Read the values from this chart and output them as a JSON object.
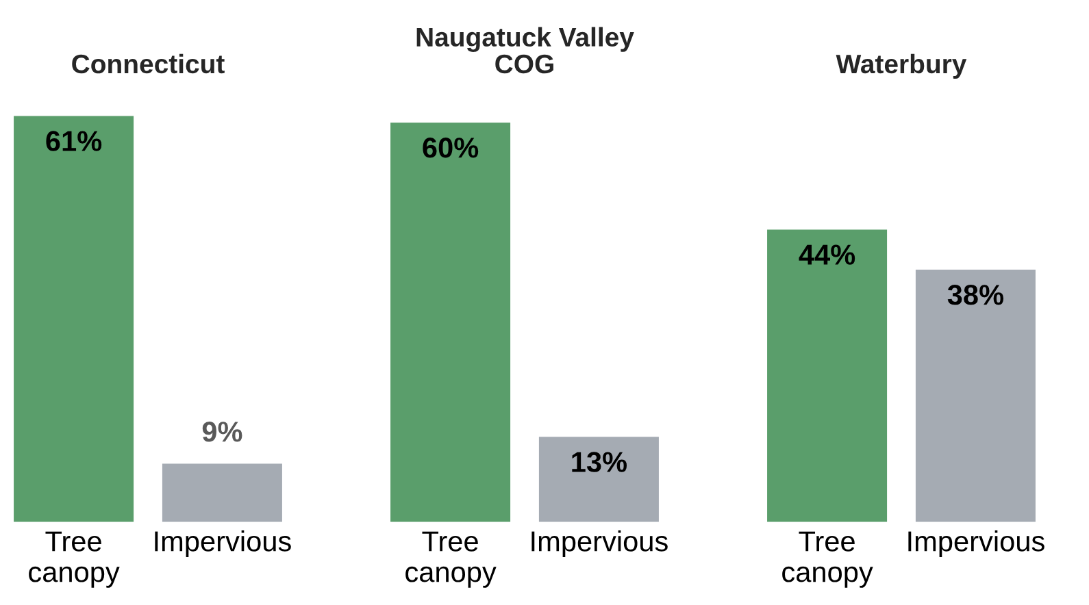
{
  "chart_data": [
    {
      "type": "bar",
      "title": "Connecticut",
      "categories": [
        "Tree\ncanopy",
        "Impervious"
      ],
      "values": [
        61,
        9
      ],
      "colors": [
        "#5a9e6b",
        "#a5abb3"
      ],
      "value_labels": [
        "61%",
        "9%"
      ],
      "tick_labels": "x",
      "grid": false,
      "legend": false
    },
    {
      "type": "bar",
      "title": "Naugatuck Valley\nCOG",
      "categories": [
        "Tree\ncanopy",
        "Impervious"
      ],
      "values": [
        60,
        13
      ],
      "colors": [
        "#5a9e6b",
        "#a5abb3"
      ],
      "value_labels": [
        "60%",
        "13%"
      ],
      "tick_labels": "x",
      "grid": false,
      "legend": false
    },
    {
      "type": "bar",
      "title": "Waterbury",
      "categories": [
        "Tree\ncanopy",
        "Impervious"
      ],
      "values": [
        44,
        38
      ],
      "colors": [
        "#5a9e6b",
        "#a5abb3"
      ],
      "value_labels": [
        "44%",
        "38%"
      ],
      "tick_labels": "x",
      "grid": false,
      "legend": false
    }
  ]
}
